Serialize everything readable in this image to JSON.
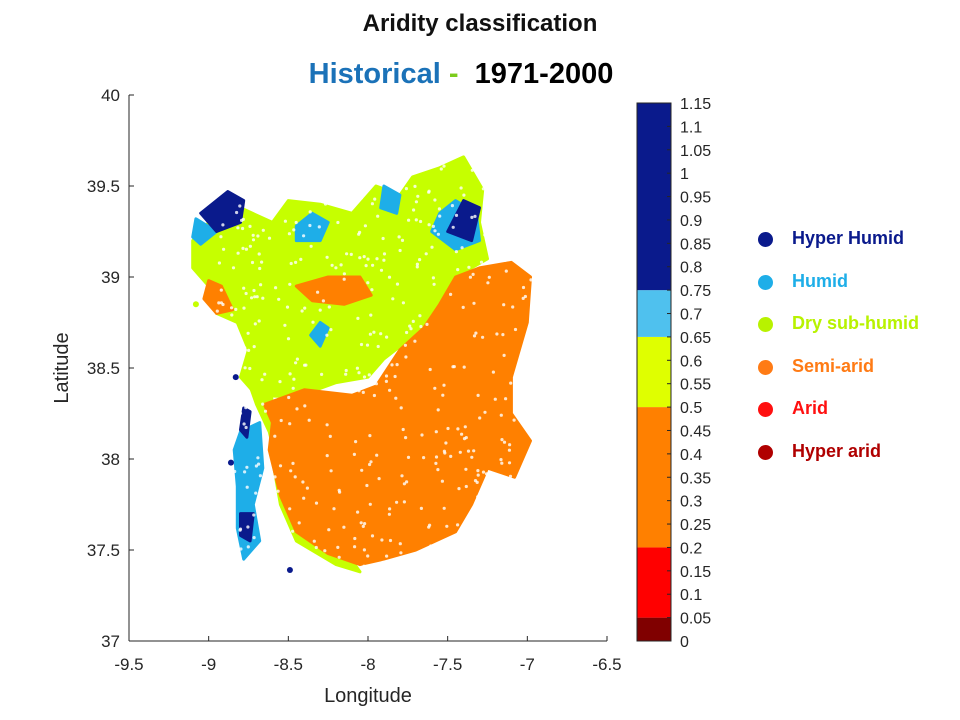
{
  "title": "Aridity classification",
  "subtitle": {
    "label": "Historical",
    "separator": " -  ",
    "period": "1971-2000"
  },
  "chart_data": {
    "type": "scatter",
    "xlabel": "Longitude",
    "ylabel": "Latitude",
    "xlim": [
      -9.5,
      -6.5
    ],
    "ylim": [
      37,
      40
    ],
    "xticks": [
      "-9.5",
      "-9",
      "-8.5",
      "-8",
      "-7.5",
      "-7",
      "-6.5"
    ],
    "yticks": [
      "37",
      "37.5",
      "38",
      "38.5",
      "39",
      "39.5",
      "40"
    ],
    "colorbar": {
      "range": [
        0,
        1.15
      ],
      "ticks": [
        "0",
        "0.05",
        "0.1",
        "0.15",
        "0.2",
        "0.25",
        "0.3",
        "0.35",
        "0.4",
        "0.45",
        "0.5",
        "0.55",
        "0.6",
        "0.65",
        "0.7",
        "0.75",
        "0.8",
        "0.85",
        "0.9",
        "0.95",
        "1",
        "1.05",
        "1.1",
        "1.15"
      ],
      "bands": [
        {
          "from": 0,
          "to": 0.05,
          "color": "#800000"
        },
        {
          "from": 0.05,
          "to": 0.2,
          "color": "#ff0000"
        },
        {
          "from": 0.2,
          "to": 0.5,
          "color": "#ff8000"
        },
        {
          "from": 0.5,
          "to": 0.65,
          "color": "#dfff00"
        },
        {
          "from": 0.65,
          "to": 0.75,
          "color": "#4fc1ee"
        },
        {
          "from": 0.75,
          "to": 1.15,
          "color": "#0a1a8c"
        }
      ]
    },
    "legend": [
      {
        "label": "Hyper Humid",
        "color": "#0a1a8c"
      },
      {
        "label": "Humid",
        "color": "#1eaee8"
      },
      {
        "label": "Dry sub-humid",
        "color": "#b8f200"
      },
      {
        "label": "Semi-arid",
        "color": "#ff7b15"
      },
      {
        "label": "Arid",
        "color": "#ff1010"
      },
      {
        "label": "Hyper arid",
        "color": "#b00000"
      }
    ],
    "regions": [
      {
        "class": "Dry sub-humid",
        "color": "#c6ff00",
        "outline": [
          [
            -9.0,
            39.3
          ],
          [
            -8.8,
            39.38
          ],
          [
            -8.6,
            39.3
          ],
          [
            -8.5,
            39.42
          ],
          [
            -8.3,
            39.4
          ],
          [
            -8.1,
            39.35
          ],
          [
            -7.95,
            39.5
          ],
          [
            -7.8,
            39.45
          ],
          [
            -7.72,
            39.55
          ],
          [
            -7.55,
            39.6
          ],
          [
            -7.4,
            39.66
          ],
          [
            -7.28,
            39.48
          ],
          [
            -7.3,
            39.3
          ],
          [
            -7.25,
            39.1
          ],
          [
            -7.45,
            39.0
          ],
          [
            -7.55,
            38.85
          ],
          [
            -7.65,
            38.72
          ],
          [
            -7.9,
            38.55
          ],
          [
            -8.0,
            38.45
          ],
          [
            -8.2,
            38.42
          ],
          [
            -8.45,
            38.34
          ],
          [
            -8.7,
            38.35
          ],
          [
            -8.8,
            38.45
          ],
          [
            -8.75,
            38.6
          ],
          [
            -8.82,
            38.75
          ],
          [
            -8.95,
            38.8
          ],
          [
            -9.0,
            38.95
          ],
          [
            -9.1,
            39.05
          ],
          [
            -9.1,
            39.2
          ]
        ]
      },
      {
        "class": "Dry sub-humid",
        "color": "#c6ff00",
        "outline": [
          [
            -8.78,
            38.5
          ],
          [
            -8.62,
            38.42
          ],
          [
            -8.58,
            38.2
          ],
          [
            -8.6,
            38.0
          ],
          [
            -8.55,
            37.75
          ],
          [
            -8.45,
            37.55
          ],
          [
            -8.2,
            37.42
          ],
          [
            -8.05,
            37.38
          ],
          [
            -8.15,
            37.5
          ],
          [
            -8.4,
            37.68
          ],
          [
            -8.55,
            37.9
          ],
          [
            -8.62,
            38.15
          ],
          [
            -8.7,
            38.3
          ]
        ]
      },
      {
        "class": "Humid",
        "color": "#1eaee8",
        "outline": [
          [
            -8.8,
            38.15
          ],
          [
            -8.68,
            38.2
          ],
          [
            -8.66,
            37.95
          ],
          [
            -8.72,
            37.75
          ],
          [
            -8.68,
            37.55
          ],
          [
            -8.78,
            37.45
          ],
          [
            -8.82,
            37.62
          ],
          [
            -8.82,
            37.85
          ],
          [
            -8.84,
            38.05
          ]
        ]
      },
      {
        "class": "Semi-arid",
        "color": "#ff8000",
        "outline": [
          [
            -8.65,
            38.3
          ],
          [
            -8.4,
            38.38
          ],
          [
            -8.1,
            38.35
          ],
          [
            -7.95,
            38.4
          ],
          [
            -7.8,
            38.6
          ],
          [
            -7.65,
            38.72
          ],
          [
            -7.55,
            38.85
          ],
          [
            -7.45,
            39.0
          ],
          [
            -7.3,
            39.05
          ],
          [
            -7.1,
            39.08
          ],
          [
            -6.98,
            39.0
          ],
          [
            -7.0,
            38.75
          ],
          [
            -7.1,
            38.45
          ],
          [
            -7.1,
            38.25
          ],
          [
            -6.98,
            38.1
          ],
          [
            -7.08,
            37.9
          ],
          [
            -7.25,
            37.95
          ],
          [
            -7.35,
            37.75
          ],
          [
            -7.45,
            37.6
          ],
          [
            -7.7,
            37.5
          ],
          [
            -7.9,
            37.45
          ],
          [
            -8.05,
            37.42
          ],
          [
            -8.25,
            37.48
          ],
          [
            -8.45,
            37.6
          ],
          [
            -8.55,
            37.8
          ],
          [
            -8.62,
            38.05
          ],
          [
            -8.6,
            38.2
          ]
        ]
      },
      {
        "class": "Semi-arid",
        "color": "#ff8000",
        "outline": [
          [
            -8.45,
            38.95
          ],
          [
            -8.25,
            39.0
          ],
          [
            -8.05,
            39.0
          ],
          [
            -7.98,
            38.9
          ],
          [
            -8.15,
            38.85
          ],
          [
            -8.35,
            38.87
          ]
        ]
      },
      {
        "class": "Semi-arid",
        "color": "#ff8000",
        "outline": [
          [
            -9.0,
            38.98
          ],
          [
            -8.92,
            38.95
          ],
          [
            -8.85,
            38.82
          ],
          [
            -8.95,
            38.8
          ],
          [
            -9.03,
            38.88
          ]
        ]
      },
      {
        "class": "Humid",
        "color": "#1eaee8",
        "outline": [
          [
            -7.55,
            39.35
          ],
          [
            -7.45,
            39.42
          ],
          [
            -7.32,
            39.35
          ],
          [
            -7.3,
            39.2
          ],
          [
            -7.45,
            39.15
          ],
          [
            -7.6,
            39.25
          ]
        ]
      },
      {
        "class": "Humid",
        "color": "#1eaee8",
        "outline": [
          [
            -8.35,
            39.35
          ],
          [
            -8.25,
            39.3
          ],
          [
            -8.3,
            39.2
          ],
          [
            -8.45,
            39.2
          ],
          [
            -8.45,
            39.28
          ]
        ]
      },
      {
        "class": "Humid",
        "color": "#1eaee8",
        "outline": [
          [
            -7.9,
            39.5
          ],
          [
            -7.8,
            39.45
          ],
          [
            -7.82,
            39.35
          ],
          [
            -7.92,
            39.38
          ]
        ]
      },
      {
        "class": "Humid",
        "color": "#1eaee8",
        "outline": [
          [
            -8.3,
            38.75
          ],
          [
            -8.25,
            38.72
          ],
          [
            -8.3,
            38.62
          ],
          [
            -8.36,
            38.68
          ]
        ]
      },
      {
        "class": "Humid",
        "color": "#1eaee8",
        "outline": [
          [
            -9.08,
            39.32
          ],
          [
            -8.95,
            39.25
          ],
          [
            -9.05,
            39.18
          ],
          [
            -9.1,
            39.22
          ]
        ]
      },
      {
        "class": "Hyper Humid",
        "color": "#0a1a8c",
        "outline": [
          [
            -9.05,
            39.35
          ],
          [
            -8.88,
            39.47
          ],
          [
            -8.78,
            39.42
          ],
          [
            -8.8,
            39.3
          ],
          [
            -8.95,
            39.25
          ]
        ]
      },
      {
        "class": "Hyper Humid",
        "color": "#0a1a8c",
        "outline": [
          [
            -7.5,
            39.25
          ],
          [
            -7.4,
            39.42
          ],
          [
            -7.3,
            39.38
          ],
          [
            -7.35,
            39.2
          ]
        ]
      },
      {
        "class": "Hyper Humid",
        "color": "#0a1a8c",
        "outline": [
          [
            -8.8,
            37.7
          ],
          [
            -8.72,
            37.7
          ],
          [
            -8.74,
            37.55
          ],
          [
            -8.8,
            37.58
          ]
        ]
      },
      {
        "class": "Hyper Humid",
        "color": "#0a1a8c",
        "outline": [
          [
            -8.78,
            38.28
          ],
          [
            -8.74,
            38.26
          ],
          [
            -8.76,
            38.12
          ],
          [
            -8.8,
            38.16
          ]
        ]
      }
    ],
    "points": [
      {
        "class": "Hyper Humid",
        "color": "#0a1a8c",
        "x": -8.83,
        "y": 38.45
      },
      {
        "class": "Hyper Humid",
        "color": "#0a1a8c",
        "x": -8.86,
        "y": 37.98
      },
      {
        "class": "Hyper Humid",
        "color": "#0a1a8c",
        "x": -8.49,
        "y": 37.39
      },
      {
        "class": "Dry sub-humid",
        "color": "#c6ff00",
        "x": -9.08,
        "y": 38.85
      }
    ]
  }
}
